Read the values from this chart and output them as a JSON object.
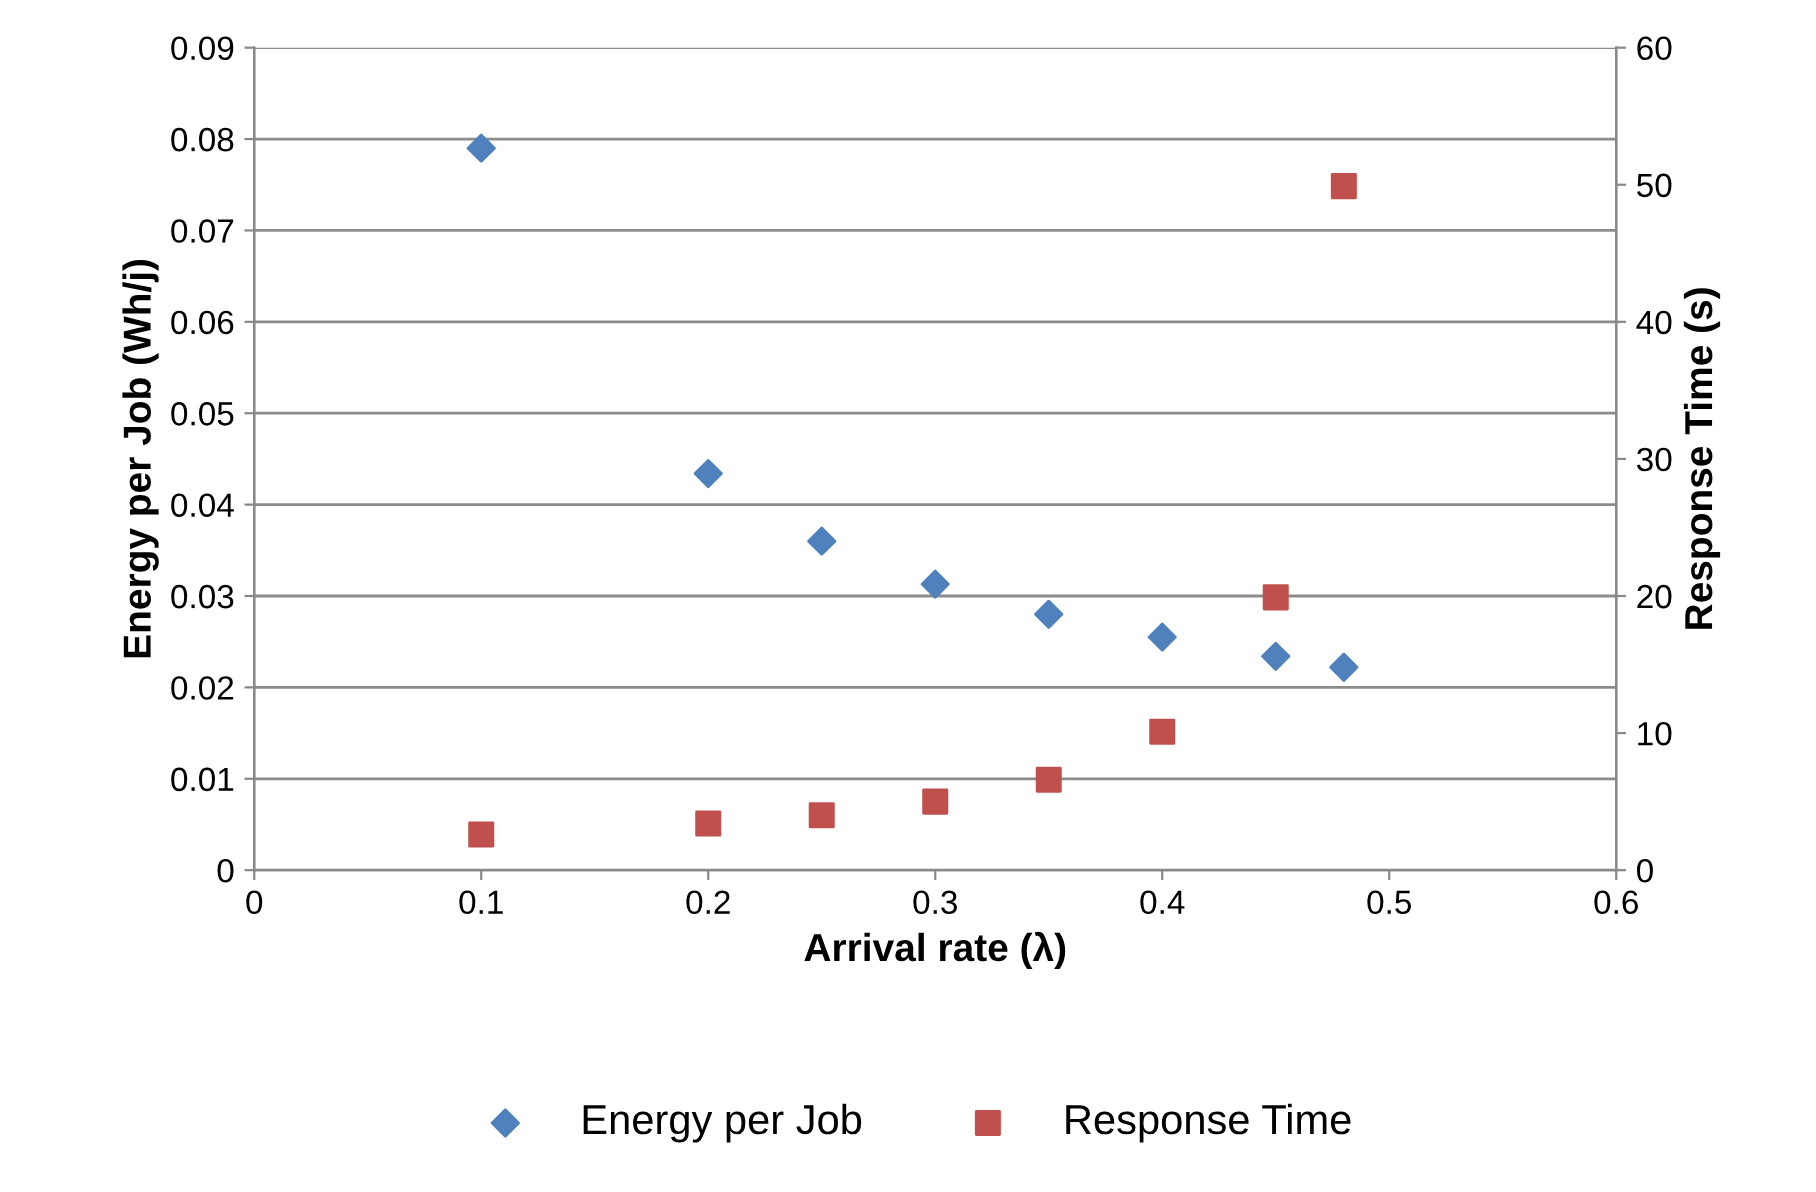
{
  "chart_data": {
    "type": "scatter",
    "xlabel": "Arrival rate (λ)",
    "ylabel": "Energy per Job (Wh/j)",
    "y2label": "Response Time (s)",
    "series": [
      {
        "name": "Energy per Job",
        "color": "#4f81bd",
        "marker": "diamond",
        "x": [
          0.1,
          0.2,
          0.25,
          0.3,
          0.35,
          0.4,
          0.45,
          0.48
        ],
        "values": [
          0.079,
          0.0434,
          0.036,
          0.0313,
          0.028,
          0.0255,
          0.0234,
          0.0222
        ]
      },
      {
        "name": "Response Time",
        "color": "#c0504d",
        "marker": "square",
        "axis": "y2",
        "x": [
          0.1,
          0.2,
          0.25,
          0.3,
          0.35,
          0.4,
          0.45,
          0.48
        ],
        "values": [
          2.6,
          3.4,
          4.0,
          5.0,
          6.6,
          10.1,
          19.9,
          49.9
        ]
      }
    ],
    "xlim": [
      0,
      0.6
    ],
    "xticks": [
      0,
      0.1,
      0.2,
      0.3,
      0.4,
      0.5,
      0.6
    ],
    "ylim": [
      0,
      0.09
    ],
    "yticks": [
      0,
      0.01,
      0.02,
      0.03,
      0.04,
      0.05,
      0.06,
      0.07,
      0.08,
      0.09
    ],
    "y2lim": [
      0,
      60
    ],
    "y2ticks": [
      0,
      10,
      20,
      30,
      40,
      50,
      60
    ],
    "grid": "y",
    "legend": "bottom"
  }
}
